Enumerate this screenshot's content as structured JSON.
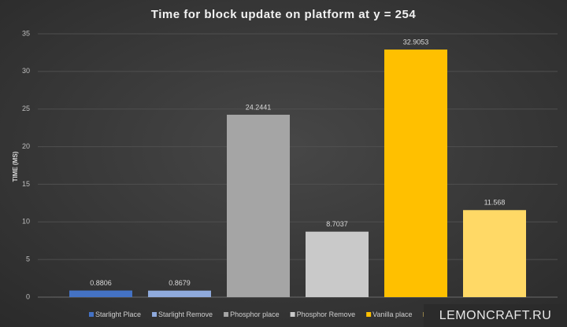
{
  "chart_data": {
    "type": "bar",
    "title": "Time for block update on platform at y = 254",
    "y_label": "TIME (MS)",
    "categories": [
      null
    ],
    "series": [
      {
        "name": "Starlight Place",
        "color": "#4472c4",
        "values": [
          0.8806
        ]
      },
      {
        "name": "Starlight Remove",
        "color": "#8faadc",
        "values": [
          0.8679
        ]
      },
      {
        "name": "Phosphor place",
        "color": "#a5a5a5",
        "values": [
          24.2441
        ]
      },
      {
        "name": "Phosphor Remove",
        "color": "#c9c9c9",
        "values": [
          8.7037
        ]
      },
      {
        "name": "Vanilla place",
        "color": "#ffc000",
        "values": [
          32.9053
        ]
      },
      {
        "name": null,
        "color": "#ffd966",
        "values": [
          11.568
        ]
      }
    ],
    "ylim": [
      0,
      35
    ],
    "yticks": [
      0,
      5,
      10,
      15,
      20,
      25,
      30,
      35
    ],
    "grid": true,
    "legend": "bottom",
    "watermark": "LEMONCRAFT.RU"
  }
}
